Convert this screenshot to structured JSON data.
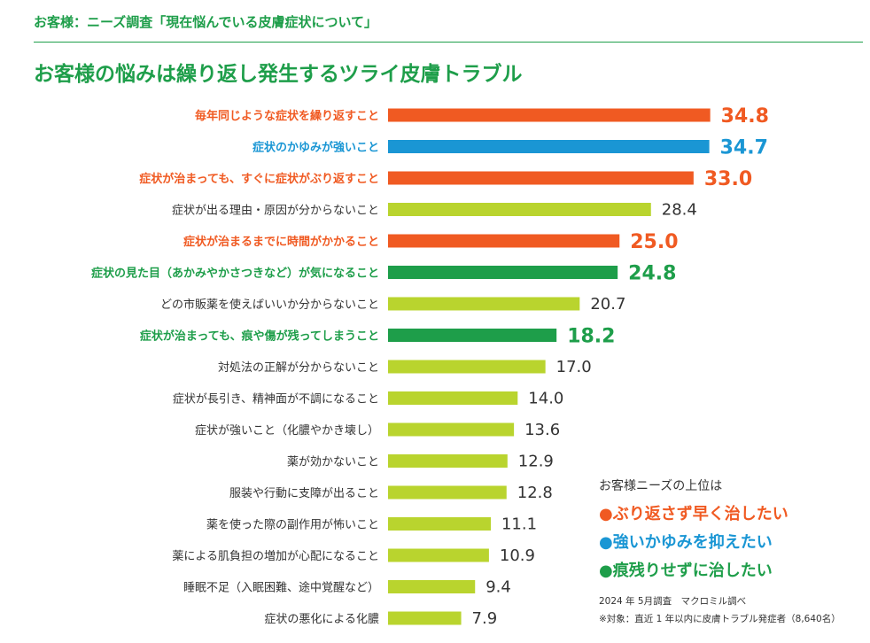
{
  "header": {
    "subtitle": "お客様：ニーズ調査「現在悩んでいる皮膚症状について」",
    "title": "お客様の悩みは繰り返し発生するツライ皮膚トラブル"
  },
  "colors": {
    "orange": "#f05a22",
    "blue": "#1a96d4",
    "green": "#1e9e4a",
    "lime": "#b9d42e",
    "dark": "#333333"
  },
  "chart_data": {
    "type": "bar",
    "orientation": "horizontal",
    "title": "お客様の悩みは繰り返し発生するツライ皮膚トラブル",
    "categories": [
      "毎年同じような症状を繰り返すこと",
      "症状のかゆみが強いこと",
      "症状が治まっても、すぐに症状がぶり返すこと",
      "症状が出る理由・原因が分からないこと",
      "症状が治まるまでに時間がかかること",
      "症状の見た目（あかみやかさつきなど）が気になること",
      "どの市販薬を使えばいいか分からないこと",
      "症状が治まっても、痕や傷が残ってしまうこと",
      "対処法の正解が分からないこと",
      "症状が長引き、精神面が不調になること",
      "症状が強いこと（化膿やかき壊し）",
      "薬が効かないこと",
      "服装や行動に支障が出ること",
      "薬を使った際の副作用が怖いこと",
      "薬による肌負担の増加が心配になること",
      "睡眠不足（入眠困難、途中覚醒など）",
      "症状の悪化による化膿"
    ],
    "values": [
      34.8,
      34.7,
      33.0,
      28.4,
      25.0,
      24.8,
      20.7,
      18.2,
      17.0,
      14.0,
      13.6,
      12.9,
      12.8,
      11.1,
      10.9,
      9.4,
      7.9
    ],
    "value_labels": [
      "34.8",
      "34.7",
      "33.0",
      "28.4",
      "25.0",
      "24.8",
      "20.7",
      "18.2",
      "17.0",
      "14.0",
      "13.6",
      "12.9",
      "12.8",
      "11.1",
      "10.9",
      "9.4",
      "7.9"
    ],
    "highlight": [
      "orange",
      "blue",
      "orange",
      "none",
      "orange",
      "green",
      "none",
      "green",
      "none",
      "none",
      "none",
      "none",
      "none",
      "none",
      "none",
      "none",
      "none"
    ],
    "xlim": [
      0,
      36
    ],
    "xlabel": "",
    "ylabel": ""
  },
  "legend": {
    "heading": "お客様ニーズの上位は",
    "items": [
      {
        "marker": "●",
        "text": "ぶり返さず早く治したい",
        "color": "orange"
      },
      {
        "marker": "●",
        "text": "強いかゆみを抑えたい",
        "color": "blue"
      },
      {
        "marker": "●",
        "text": "痕残りせずに治したい",
        "color": "green"
      }
    ]
  },
  "footnotes": {
    "survey": "2024 年 5月調査　マクロミル調べ",
    "target": "※対象：直近 1 年以内に皮膚トラブル発症者（8,640名）"
  }
}
